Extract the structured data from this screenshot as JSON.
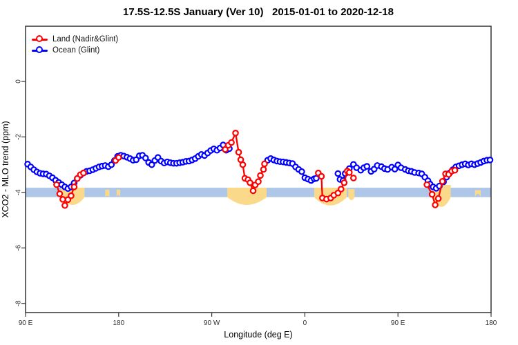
{
  "chart_data": {
    "type": "line",
    "title": "17.5S-12.5S January (Ver 10)   2015-01-01 to 2020-12-18",
    "xlabel": "Longitude (deg E)",
    "ylabel": "XCO2 - MLO trend (ppm)",
    "xlim": [
      90,
      540
    ],
    "ylim": [
      -8.33,
      1.99
    ],
    "grid": false,
    "legend_position": "top-left",
    "x_ticks": [
      {
        "value": 90,
        "label": "90 E"
      },
      {
        "value": 180,
        "label": "180"
      },
      {
        "value": 270,
        "label": "90 W"
      },
      {
        "value": 360,
        "label": "0"
      },
      {
        "value": 450,
        "label": "90 E"
      },
      {
        "value": 540,
        "label": "180"
      }
    ],
    "y_ticks": [
      {
        "value": 0,
        "label": "0"
      },
      {
        "value": -2,
        "label": "-2"
      },
      {
        "value": -4,
        "label": "-4"
      },
      {
        "value": -6,
        "label": "-6"
      },
      {
        "value": -8,
        "label": "-8"
      }
    ],
    "reference_band": {
      "from": -3.83,
      "to": -4.17,
      "color": "#aec7e8"
    },
    "highlight_regions": {
      "color": "#fad98b",
      "regions": [
        {
          "x_from": 124,
          "x_to": 147,
          "top": -3.83,
          "bottom": -4.45
        },
        {
          "x_from": 167,
          "x_to": 171,
          "top": -3.9,
          "bottom": -4.12
        },
        {
          "x_from": 178,
          "x_to": 181.5,
          "top": -3.9,
          "bottom": -4.08
        },
        {
          "x_from": 285,
          "x_to": 323,
          "top": -3.83,
          "bottom": -4.45
        },
        {
          "x_from": 369,
          "x_to": 400.5,
          "top": -3.83,
          "bottom": -4.47
        },
        {
          "x_from": 402,
          "x_to": 408,
          "top": -3.88,
          "bottom": -4.28
        },
        {
          "x_from": 483,
          "x_to": 501,
          "top": -3.73,
          "bottom": -4.52
        },
        {
          "x_from": 524.5,
          "x_to": 530,
          "top": -3.92,
          "bottom": -4.05
        }
      ]
    },
    "series": [
      {
        "name": "Land (Nadir&Glint)",
        "color": "#ff0000",
        "marker": "open-circle",
        "segments": [
          [
            [
              120,
              -3.72
            ],
            [
              123,
              -4.05
            ],
            [
              126,
              -4.25
            ],
            [
              128,
              -4.47
            ],
            [
              131,
              -4.26
            ],
            [
              134,
              -4.12
            ],
            [
              137,
              -3.8
            ],
            [
              140,
              -3.5
            ],
            [
              143,
              -3.36
            ],
            [
              146,
              -3.3
            ]
          ],
          [
            [
              177,
              -2.85
            ],
            [
              180,
              -2.74
            ]
          ],
          [
            [
              283,
              -2.45
            ],
            [
              286,
              -2.3
            ],
            [
              289,
              -2.2
            ],
            [
              293,
              -1.86
            ],
            [
              296,
              -2.55
            ],
            [
              298,
              -2.82
            ],
            [
              300,
              -3.0
            ],
            [
              302,
              -3.49
            ],
            [
              305,
              -3.54
            ],
            [
              307,
              -3.65
            ],
            [
              310,
              -3.94
            ],
            [
              312,
              -3.73
            ],
            [
              315,
              -3.61
            ],
            [
              317,
              -3.39
            ],
            [
              320,
              -3.17
            ],
            [
              321,
              -2.97
            ]
          ],
          [
            [
              373,
              -3.3
            ],
            [
              376,
              -3.42
            ],
            [
              377,
              -4.2
            ],
            [
              381,
              -4.24
            ],
            [
              385,
              -4.2
            ],
            [
              388,
              -4.1
            ],
            [
              392,
              -4.02
            ],
            [
              395,
              -3.88
            ],
            [
              398,
              -3.65
            ],
            [
              401,
              -3.23
            ],
            [
              403,
              -3.28
            ],
            [
              407,
              -3.48
            ]
          ],
          [
            [
              478,
              -3.72
            ],
            [
              483,
              -4.07
            ],
            [
              486,
              -4.45
            ],
            [
              489,
              -4.22
            ],
            [
              493,
              -3.6
            ],
            [
              496,
              -3.33
            ],
            [
              499,
              -3.35
            ],
            [
              502,
              -3.23
            ],
            [
              505,
              -3.2
            ]
          ]
        ]
      },
      {
        "name": "Ocean (Glint)",
        "color": "#0000ff",
        "marker": "open-circle",
        "segments": [
          [
            [
              92,
              -2.98
            ],
            [
              95,
              -3.08
            ],
            [
              98,
              -3.18
            ],
            [
              101,
              -3.26
            ],
            [
              104,
              -3.31
            ],
            [
              107,
              -3.33
            ],
            [
              110,
              -3.34
            ],
            [
              113,
              -3.4
            ],
            [
              116,
              -3.47
            ],
            [
              119,
              -3.56
            ],
            [
              122,
              -3.64
            ],
            [
              125,
              -3.72
            ],
            [
              128,
              -3.8
            ],
            [
              131,
              -3.86
            ],
            [
              134,
              -3.8
            ],
            [
              137,
              -3.66
            ],
            [
              140,
              -3.5
            ],
            [
              143,
              -3.38
            ],
            [
              146,
              -3.3
            ],
            [
              149,
              -3.24
            ],
            [
              152,
              -3.22
            ],
            [
              155,
              -3.18
            ],
            [
              158,
              -3.13
            ],
            [
              161,
              -3.08
            ],
            [
              164,
              -3.05
            ],
            [
              167,
              -3.03
            ],
            [
              170,
              -3.07
            ],
            [
              173,
              -3.0
            ],
            [
              176,
              -2.85
            ],
            [
              179,
              -2.7
            ],
            [
              182,
              -2.66
            ],
            [
              185,
              -2.69
            ],
            [
              188,
              -2.73
            ],
            [
              191,
              -2.78
            ],
            [
              194,
              -2.84
            ],
            [
              197,
              -2.82
            ],
            [
              200,
              -2.68
            ],
            [
              203,
              -2.66
            ],
            [
              206,
              -2.76
            ],
            [
              209,
              -2.92
            ],
            [
              212,
              -3.0
            ],
            [
              215,
              -2.85
            ],
            [
              218,
              -2.74
            ],
            [
              221,
              -2.87
            ],
            [
              224,
              -2.94
            ],
            [
              227,
              -2.9
            ],
            [
              230,
              -2.93
            ],
            [
              233,
              -2.95
            ],
            [
              236,
              -2.95
            ],
            [
              239,
              -2.93
            ],
            [
              242,
              -2.91
            ],
            [
              245,
              -2.88
            ],
            [
              248,
              -2.87
            ],
            [
              251,
              -2.83
            ],
            [
              254,
              -2.78
            ],
            [
              257,
              -2.7
            ],
            [
              260,
              -2.63
            ],
            [
              263,
              -2.67
            ],
            [
              266,
              -2.58
            ],
            [
              269,
              -2.49
            ],
            [
              272,
              -2.43
            ],
            [
              275,
              -2.48
            ],
            [
              278,
              -2.4
            ],
            [
              281,
              -2.29
            ],
            [
              284,
              -2.48
            ],
            [
              287,
              -2.42
            ]
          ],
          [
            [
              324,
              -2.84
            ],
            [
              327,
              -2.78
            ],
            [
              330,
              -2.83
            ],
            [
              333,
              -2.87
            ],
            [
              336,
              -2.89
            ],
            [
              339,
              -2.9
            ],
            [
              342,
              -2.92
            ],
            [
              345,
              -2.94
            ],
            [
              348,
              -2.96
            ],
            [
              351,
              -3.08
            ],
            [
              354,
              -3.17
            ],
            [
              357,
              -3.25
            ],
            [
              360,
              -3.47
            ],
            [
              363,
              -3.52
            ],
            [
              366,
              -3.57
            ],
            [
              369,
              -3.51
            ],
            [
              371,
              -3.49
            ]
          ],
          [
            [
              392,
              -3.32
            ],
            [
              394,
              -3.53
            ],
            [
              397,
              -3.57
            ],
            [
              399,
              -3.32
            ],
            [
              403,
              -3.14
            ],
            [
              407,
              -2.99
            ],
            [
              410,
              -3.11
            ],
            [
              414,
              -3.2
            ],
            [
              417,
              -3.11
            ],
            [
              420,
              -3.06
            ],
            [
              424,
              -3.24
            ],
            [
              427,
              -3.16
            ],
            [
              430,
              -3.03
            ],
            [
              434,
              -3.07
            ],
            [
              437,
              -3.14
            ],
            [
              440,
              -3.17
            ],
            [
              444,
              -3.09
            ],
            [
              447,
              -3.16
            ],
            [
              450,
              -3.01
            ],
            [
              453,
              -3.11
            ],
            [
              457,
              -3.17
            ],
            [
              460,
              -3.22
            ],
            [
              463,
              -3.24
            ],
            [
              466,
              -3.28
            ],
            [
              470,
              -3.3
            ],
            [
              473,
              -3.33
            ],
            [
              476,
              -3.45
            ],
            [
              479,
              -3.58
            ],
            [
              481,
              -3.7
            ],
            [
              484,
              -3.8
            ],
            [
              487,
              -3.85
            ],
            [
              490,
              -3.77
            ],
            [
              494,
              -3.62
            ],
            [
              497,
              -3.45
            ],
            [
              500,
              -3.3
            ],
            [
              503,
              -3.18
            ],
            [
              506,
              -3.08
            ],
            [
              509,
              -3.04
            ],
            [
              512,
              -3.0
            ],
            [
              515,
              -2.97
            ],
            [
              518,
              -3.01
            ],
            [
              521,
              -2.97
            ],
            [
              524,
              -3.0
            ],
            [
              527,
              -2.96
            ],
            [
              530,
              -2.92
            ],
            [
              533,
              -2.87
            ],
            [
              536,
              -2.84
            ],
            [
              539,
              -2.83
            ]
          ]
        ]
      }
    ]
  }
}
